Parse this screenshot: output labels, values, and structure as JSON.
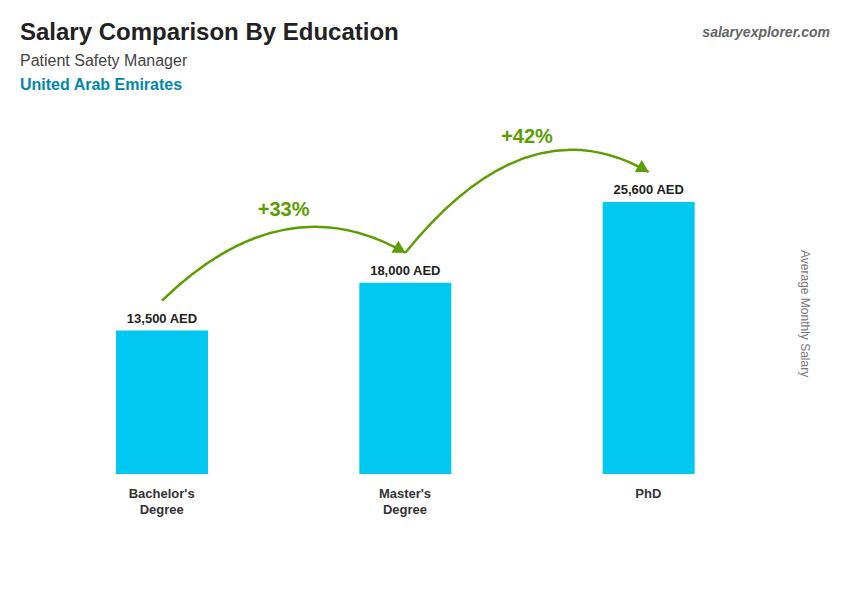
{
  "chart_data": {
    "type": "bar",
    "title": "Salary Comparison By Education",
    "subtitle": [
      "Patient Safety Manager",
      "United Arab Emirates"
    ],
    "source": "salaryexplorer.com",
    "ylabel": "Average Monthly Salary",
    "categories": [
      "Bachelor's\nDegree",
      "Master's\nDegree",
      "PhD"
    ],
    "values": [
      13500,
      18000,
      25600
    ],
    "value_labels": [
      "13,500 AED",
      "18,000 AED",
      "25,600 AED"
    ],
    "data_labels": true,
    "color": "#00c8f0",
    "annotations": [
      "+33%",
      "+42%"
    ],
    "ylim": [
      0,
      32000
    ],
    "tick_labels": "x",
    "grid": false
  }
}
